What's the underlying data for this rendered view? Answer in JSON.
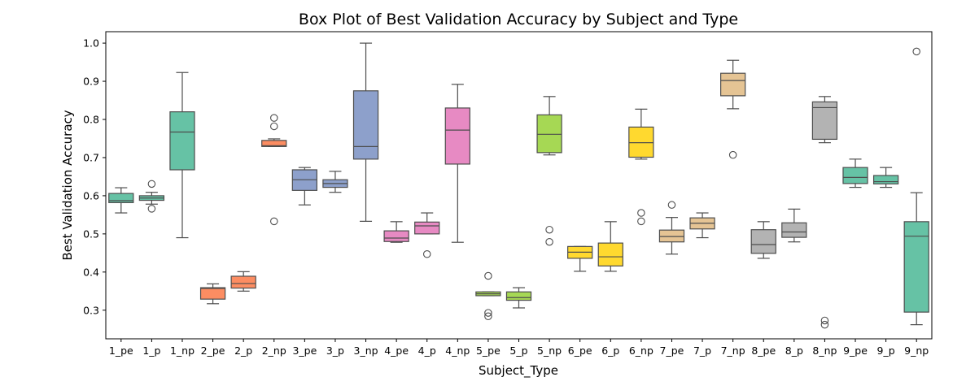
{
  "chart_data": {
    "type": "box",
    "title": "Box Plot of Best Validation Accuracy by Subject and Type",
    "xlabel": "Subject_Type",
    "ylabel": "Best Validation Accuracy",
    "ylim": [
      0.225,
      1.03
    ],
    "yticks": [
      "0.3",
      "0.4",
      "0.5",
      "0.6",
      "0.7",
      "0.8",
      "0.9",
      "1.0"
    ],
    "grid": false,
    "categories": [
      {
        "name": "1_pe",
        "color": "#66c2a5",
        "min": 0.555,
        "q1": 0.582,
        "median": 0.587,
        "q3": 0.606,
        "max": 0.621,
        "fliers": []
      },
      {
        "name": "1_p",
        "color": "#66c2a5",
        "min": 0.578,
        "q1": 0.588,
        "median": 0.594,
        "q3": 0.6,
        "max": 0.609,
        "fliers": [
          0.631,
          0.566
        ]
      },
      {
        "name": "1_np",
        "color": "#66c2a5",
        "min": 0.49,
        "q1": 0.668,
        "median": 0.767,
        "q3": 0.82,
        "max": 0.923,
        "fliers": []
      },
      {
        "name": "2_pe",
        "color": "#fc8d62",
        "min": 0.317,
        "q1": 0.329,
        "median": 0.357,
        "q3": 0.359,
        "max": 0.369,
        "fliers": []
      },
      {
        "name": "2_p",
        "color": "#fc8d62",
        "min": 0.35,
        "q1": 0.358,
        "median": 0.37,
        "q3": 0.389,
        "max": 0.401,
        "fliers": []
      },
      {
        "name": "2_np",
        "color": "#fc8d62",
        "min": 0.729,
        "q1": 0.729,
        "median": 0.731,
        "q3": 0.745,
        "max": 0.749,
        "fliers": [
          0.804,
          0.782,
          0.533
        ]
      },
      {
        "name": "3_pe",
        "color": "#8da0cb",
        "min": 0.576,
        "q1": 0.614,
        "median": 0.642,
        "q3": 0.668,
        "max": 0.674,
        "fliers": []
      },
      {
        "name": "3_p",
        "color": "#8da0cb",
        "min": 0.609,
        "q1": 0.622,
        "median": 0.632,
        "q3": 0.642,
        "max": 0.664,
        "fliers": []
      },
      {
        "name": "3_np",
        "color": "#8da0cb",
        "min": 0.533,
        "q1": 0.696,
        "median": 0.729,
        "q3": 0.875,
        "max": 1.0,
        "fliers": []
      },
      {
        "name": "4_pe",
        "color": "#e78ac3",
        "min": 0.478,
        "q1": 0.48,
        "median": 0.489,
        "q3": 0.508,
        "max": 0.532,
        "fliers": []
      },
      {
        "name": "4_p",
        "color": "#e78ac3",
        "min": 0.5,
        "q1": 0.5,
        "median": 0.521,
        "q3": 0.531,
        "max": 0.555,
        "fliers": [
          0.447
        ]
      },
      {
        "name": "4_np",
        "color": "#e78ac3",
        "min": 0.478,
        "q1": 0.683,
        "median": 0.772,
        "q3": 0.83,
        "max": 0.892,
        "fliers": []
      },
      {
        "name": "5_pe",
        "color": "#a6d854",
        "min": 0.338,
        "q1": 0.338,
        "median": 0.343,
        "q3": 0.348,
        "max": 0.348,
        "fliers": [
          0.39,
          0.293,
          0.284
        ]
      },
      {
        "name": "5_p",
        "color": "#a6d854",
        "min": 0.306,
        "q1": 0.326,
        "median": 0.333,
        "q3": 0.348,
        "max": 0.359,
        "fliers": []
      },
      {
        "name": "5_np",
        "color": "#a6d854",
        "min": 0.707,
        "q1": 0.713,
        "median": 0.761,
        "q3": 0.812,
        "max": 0.86,
        "fliers": [
          0.511,
          0.479
        ]
      },
      {
        "name": "6_pe",
        "color": "#ffd92f",
        "min": 0.402,
        "q1": 0.436,
        "median": 0.452,
        "q3": 0.467,
        "max": 0.467,
        "fliers": []
      },
      {
        "name": "6_p",
        "color": "#ffd92f",
        "min": 0.402,
        "q1": 0.416,
        "median": 0.44,
        "q3": 0.476,
        "max": 0.532,
        "fliers": []
      },
      {
        "name": "6_np",
        "color": "#ffd92f",
        "min": 0.696,
        "q1": 0.701,
        "median": 0.739,
        "q3": 0.78,
        "max": 0.827,
        "fliers": [
          0.555,
          0.533
        ]
      },
      {
        "name": "7_pe",
        "color": "#e5c494",
        "min": 0.447,
        "q1": 0.479,
        "median": 0.493,
        "q3": 0.51,
        "max": 0.543,
        "fliers": [
          0.576
        ]
      },
      {
        "name": "7_p",
        "color": "#e5c494",
        "min": 0.49,
        "q1": 0.513,
        "median": 0.528,
        "q3": 0.542,
        "max": 0.555,
        "fliers": []
      },
      {
        "name": "7_np",
        "color": "#e5c494",
        "min": 0.828,
        "q1": 0.862,
        "median": 0.902,
        "q3": 0.921,
        "max": 0.955,
        "fliers": [
          0.707
        ]
      },
      {
        "name": "8_pe",
        "color": "#b3b3b3",
        "min": 0.436,
        "q1": 0.449,
        "median": 0.472,
        "q3": 0.511,
        "max": 0.532,
        "fliers": []
      },
      {
        "name": "8_p",
        "color": "#b3b3b3",
        "min": 0.479,
        "q1": 0.491,
        "median": 0.505,
        "q3": 0.529,
        "max": 0.565,
        "fliers": []
      },
      {
        "name": "8_np",
        "color": "#b3b3b3",
        "min": 0.739,
        "q1": 0.748,
        "median": 0.831,
        "q3": 0.846,
        "max": 0.86,
        "fliers": [
          0.273,
          0.262
        ]
      },
      {
        "name": "9_pe",
        "color": "#66c2a5",
        "min": 0.622,
        "q1": 0.632,
        "median": 0.648,
        "q3": 0.674,
        "max": 0.696,
        "fliers": []
      },
      {
        "name": "9_p",
        "color": "#66c2a5",
        "min": 0.622,
        "q1": 0.631,
        "median": 0.637,
        "q3": 0.653,
        "max": 0.674,
        "fliers": []
      },
      {
        "name": "9_np",
        "color": "#66c2a5",
        "min": 0.262,
        "q1": 0.295,
        "median": 0.494,
        "q3": 0.532,
        "max": 0.608,
        "fliers": [
          0.978
        ]
      }
    ]
  }
}
